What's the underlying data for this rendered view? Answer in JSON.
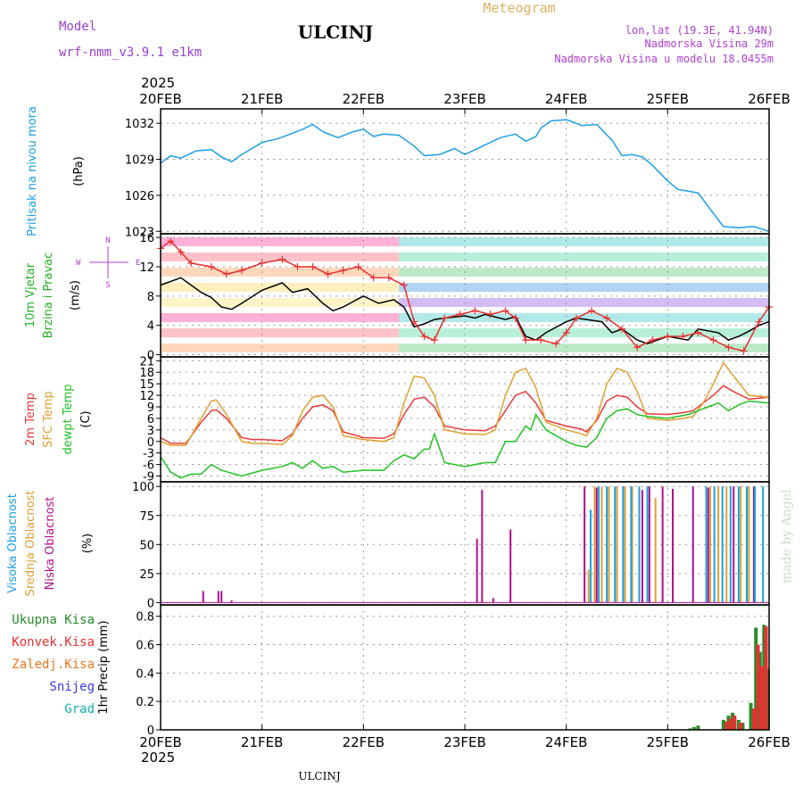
{
  "header": {
    "title": "ULCINJ",
    "subtitle": "Meteogram",
    "model_label": "Model",
    "model_name": "wrf-nmm_v3.9.1  e1km",
    "lonlat": "lon,lat (19.3E, 41.94N)",
    "elevation": "Nadmorska Visina 29m",
    "model_elevation": "Nadmorska Visina u modelu 18.0455m",
    "footer": "ULCINJ",
    "watermark": "made by Angel",
    "year_top": "2025",
    "year_bottom": "2025"
  },
  "colors": {
    "pressure": "#1a9fe6",
    "wind_speed": "#000000",
    "wind_gust": "#e63030",
    "temp_2m": "#e83a3a",
    "temp_sfc": "#e0a030",
    "dewpoint": "#22c022",
    "cloud_high": "#1a9fe6",
    "cloud_mid": "#e0a030",
    "cloud_low": "#b0108a",
    "precip_total": "#2a8a2a",
    "precip_conv": "#e63030",
    "precip_frozen": "#e87820",
    "snow": "#3a3ae0",
    "hail": "#10b0b0"
  },
  "chart_data": {
    "type": "line",
    "x_ticks": [
      "20FEB",
      "21FEB",
      "22FEB",
      "23FEB",
      "24FEB",
      "25FEB",
      "26FEB"
    ],
    "xlim": [
      0,
      6
    ],
    "panels": [
      {
        "id": "pressure",
        "ylabel_lines": [
          "Pritisak na nivou mora",
          "(hPa)"
        ],
        "yticks": [
          1023,
          1026,
          1029,
          1032
        ],
        "ylim": [
          1022.8,
          1033.2
        ],
        "series": [
          {
            "key": "pressure",
            "x": [
              0,
              0.1,
              0.2,
              0.35,
              0.5,
              0.6,
              0.7,
              0.8,
              1.0,
              1.15,
              1.25,
              1.4,
              1.5,
              1.6,
              1.75,
              1.9,
              2.0,
              2.1,
              2.2,
              2.35,
              2.5,
              2.6,
              2.75,
              2.9,
              3.0,
              3.1,
              3.2,
              3.35,
              3.5,
              3.6,
              3.7,
              3.75,
              3.85,
              4.0,
              4.1,
              4.15,
              4.3,
              4.45,
              4.55,
              4.65,
              4.75,
              4.85,
              5.0,
              5.1,
              5.3,
              5.45,
              5.55,
              5.7,
              5.85,
              6.0
            ],
            "values": [
              1028.7,
              1029.3,
              1029.1,
              1029.7,
              1029.8,
              1029.2,
              1028.8,
              1029.4,
              1030.4,
              1030.7,
              1031.0,
              1031.5,
              1031.9,
              1031.3,
              1030.8,
              1031.3,
              1031.5,
              1030.9,
              1031.1,
              1031.0,
              1030.1,
              1029.3,
              1029.4,
              1029.9,
              1029.4,
              1029.8,
              1030.2,
              1030.8,
              1031.1,
              1030.5,
              1030.9,
              1031.6,
              1032.2,
              1032.3,
              1032.0,
              1031.8,
              1031.9,
              1030.6,
              1029.3,
              1029.4,
              1029.2,
              1028.5,
              1027.2,
              1026.5,
              1026.2,
              1024.5,
              1023.4,
              1023.3,
              1023.4,
              1023.0
            ]
          }
        ]
      },
      {
        "id": "wind",
        "ylabel_lines": [
          "10m Vjetar",
          "Brzina i Pravac",
          "(m/s)"
        ],
        "yticks": [
          0,
          4,
          8,
          12,
          16
        ],
        "ylim": [
          -0.3,
          16.5
        ],
        "series": [
          {
            "key": "wind_speed",
            "x": [
              0,
              0.2,
              0.4,
              0.5,
              0.6,
              0.7,
              0.8,
              1.0,
              1.2,
              1.3,
              1.45,
              1.6,
              1.7,
              1.8,
              2.0,
              2.15,
              2.3,
              2.4,
              2.5,
              2.6,
              2.7,
              2.8,
              3.0,
              3.1,
              3.2,
              3.4,
              3.5,
              3.6,
              3.7,
              3.8,
              4.0,
              4.1,
              4.2,
              4.35,
              4.45,
              4.55,
              4.7,
              4.8,
              5.0,
              5.2,
              5.3,
              5.5,
              5.6,
              5.7,
              5.8,
              5.9,
              6.0
            ],
            "values": [
              9.5,
              10.5,
              8.5,
              7.8,
              6.5,
              6.2,
              7.0,
              8.8,
              9.8,
              8.5,
              9.0,
              7.0,
              6.0,
              6.5,
              8.0,
              7.0,
              7.5,
              6.5,
              3.8,
              4.2,
              4.8,
              5.0,
              5.3,
              5.0,
              5.5,
              4.8,
              5.2,
              2.5,
              2.0,
              3.0,
              4.5,
              5.0,
              4.8,
              4.5,
              3.0,
              3.5,
              2.0,
              1.5,
              2.5,
              2.0,
              3.5,
              3.0,
              2.0,
              2.5,
              3.2,
              4.0,
              4.5
            ]
          },
          {
            "key": "wind_gust",
            "x": [
              0,
              0.1,
              0.2,
              0.3,
              0.5,
              0.65,
              0.8,
              1.0,
              1.2,
              1.35,
              1.5,
              1.65,
              1.8,
              1.95,
              2.1,
              2.25,
              2.4,
              2.5,
              2.6,
              2.7,
              2.8,
              2.95,
              3.1,
              3.25,
              3.4,
              3.5,
              3.6,
              3.75,
              3.9,
              4.0,
              4.1,
              4.25,
              4.4,
              4.55,
              4.7,
              4.85,
              5.0,
              5.15,
              5.3,
              5.45,
              5.6,
              5.75,
              5.9,
              6.0
            ],
            "values": [
              14.5,
              15.5,
              14.0,
              12.5,
              12.0,
              11.0,
              11.5,
              12.5,
              13.0,
              12.0,
              12.0,
              11.0,
              11.5,
              12.0,
              10.5,
              10.5,
              9.5,
              4.5,
              2.5,
              2.0,
              5.0,
              5.5,
              6.0,
              5.5,
              6.0,
              5.0,
              2.0,
              2.0,
              1.5,
              3.0,
              5.0,
              6.0,
              5.0,
              3.5,
              1.0,
              2.0,
              2.5,
              2.5,
              3.0,
              2.0,
              1.0,
              0.5,
              4.5,
              6.5
            ]
          }
        ]
      },
      {
        "id": "temperature",
        "ylabel_lines": [
          "2m Temp",
          "SFC Temp",
          "dewpt Temp",
          "(C)"
        ],
        "yticks": [
          -9,
          -6,
          -3,
          0,
          3,
          6,
          9,
          12,
          15,
          18,
          21
        ],
        "ylim": [
          -10.5,
          22
        ],
        "series": [
          {
            "key": "temp_2m",
            "x": [
              0,
              0.1,
              0.25,
              0.4,
              0.5,
              0.55,
              0.65,
              0.8,
              0.9,
              1.0,
              1.2,
              1.3,
              1.4,
              1.5,
              1.6,
              1.7,
              1.8,
              2.0,
              2.2,
              2.3,
              2.4,
              2.5,
              2.6,
              2.7,
              2.8,
              3.0,
              3.2,
              3.3,
              3.4,
              3.5,
              3.6,
              3.7,
              3.8,
              4.0,
              4.15,
              4.2,
              4.3,
              4.4,
              4.5,
              4.6,
              4.7,
              4.8,
              5.0,
              5.15,
              5.25,
              5.35,
              5.45,
              5.55,
              5.65,
              5.8,
              6.0
            ],
            "values": [
              1,
              -0.5,
              -0.5,
              5,
              8,
              8.2,
              6,
              1,
              0.5,
              0.5,
              0.2,
              2,
              6,
              9,
              9.5,
              8,
              2.5,
              1,
              0.8,
              2,
              7,
              11,
              11.5,
              9,
              4,
              3,
              2.8,
              4,
              8,
              12,
              13,
              10,
              5.5,
              4,
              3.2,
              2.5,
              5.5,
              10.5,
              12,
              11.5,
              9,
              7.2,
              7,
              7.5,
              8,
              10,
              12,
              14.5,
              13,
              11,
              11.5
            ]
          },
          {
            "key": "temp_sfc",
            "x": [
              0,
              0.1,
              0.25,
              0.4,
              0.5,
              0.55,
              0.65,
              0.8,
              0.9,
              1.0,
              1.2,
              1.3,
              1.4,
              1.5,
              1.6,
              1.7,
              1.8,
              2.0,
              2.2,
              2.3,
              2.4,
              2.5,
              2.6,
              2.7,
              2.8,
              3.0,
              3.2,
              3.3,
              3.4,
              3.5,
              3.6,
              3.7,
              3.8,
              4.0,
              4.15,
              4.2,
              4.3,
              4.4,
              4.5,
              4.6,
              4.7,
              4.8,
              5.0,
              5.15,
              5.25,
              5.35,
              5.45,
              5.55,
              5.65,
              5.8,
              6.0
            ],
            "values": [
              0,
              -1,
              -1,
              6,
              10.5,
              10.8,
              7,
              0,
              -0.5,
              -0.5,
              -0.8,
              1.5,
              8,
              11.5,
              12,
              9,
              1.5,
              0.5,
              0,
              1,
              10,
              17,
              16.5,
              12,
              3,
              2,
              1.8,
              3,
              12,
              18,
              19,
              14,
              5,
              3,
              2,
              1.5,
              6,
              15,
              19,
              18,
              13,
              6,
              5.5,
              6,
              6.5,
              10,
              15,
              20.5,
              17,
              12,
              11.5
            ]
          },
          {
            "key": "dewpoint",
            "x": [
              0,
              0.1,
              0.2,
              0.3,
              0.4,
              0.5,
              0.6,
              0.8,
              1.0,
              1.2,
              1.3,
              1.4,
              1.5,
              1.6,
              1.7,
              1.8,
              2.0,
              2.2,
              2.3,
              2.4,
              2.5,
              2.6,
              2.65,
              2.7,
              2.8,
              3.0,
              3.1,
              3.2,
              3.3,
              3.4,
              3.5,
              3.6,
              3.65,
              3.7,
              3.8,
              4.0,
              4.1,
              4.2,
              4.3,
              4.4,
              4.5,
              4.6,
              4.7,
              4.8,
              5.0,
              5.2,
              5.3,
              5.4,
              5.5,
              5.6,
              5.7,
              5.8,
              6.0
            ],
            "values": [
              -4,
              -8,
              -9.5,
              -8.5,
              -8.5,
              -6,
              -7.5,
              -9,
              -7.5,
              -6.5,
              -5.5,
              -7,
              -5,
              -7,
              -6.5,
              -8,
              -7.5,
              -7.5,
              -5,
              -3.5,
              -4.5,
              -2,
              -2,
              2,
              -5.5,
              -6.5,
              -6,
              -5.5,
              -5.5,
              0,
              0,
              4,
              3,
              7,
              3,
              0,
              -1,
              -1.5,
              1,
              6,
              8,
              8.5,
              7,
              6.5,
              6,
              7,
              8,
              9,
              10,
              8,
              9.5,
              10.5,
              10
            ]
          }
        ]
      },
      {
        "id": "clouds",
        "ylabel_lines": [
          "Visoka Oblacnost",
          "Srednja Oblacnost",
          "Niska Oblacnost",
          "(%)"
        ],
        "yticks": [
          0,
          25,
          50,
          75,
          100
        ],
        "ylim": [
          -2,
          104
        ],
        "series": [
          {
            "key": "cloud_low",
            "x": [
              0.42,
              0.57,
              0.6,
              0.7,
              3.12,
              3.17,
              3.28,
              3.45,
              4.18,
              4.3,
              4.5,
              4.75,
              4.82,
              4.95,
              5.05,
              5.25,
              5.4,
              5.65,
              5.85
            ],
            "values": [
              10,
              10,
              10,
              2,
              55,
              97,
              4,
              63,
              100,
              99,
              98,
              97,
              100,
              100,
              98,
              100,
              99,
              100,
              100
            ]
          },
          {
            "key": "cloud_mid",
            "x": [
              4.22,
              4.28,
              4.35,
              4.42,
              4.5,
              4.58,
              4.65,
              4.72,
              4.8,
              4.88,
              5.42,
              5.5,
              5.58,
              5.72,
              5.8
            ],
            "values": [
              28,
              100,
              100,
              100,
              100,
              100,
              100,
              100,
              100,
              90,
              100,
              100,
              100,
              100,
              100
            ]
          },
          {
            "key": "cloud_high",
            "x": [
              4.24,
              4.32,
              4.4,
              4.48,
              4.56,
              4.64,
              4.72,
              4.8,
              5.38,
              5.46,
              5.54,
              5.62,
              5.7,
              5.78,
              5.86,
              5.94
            ],
            "values": [
              80,
              100,
              100,
              100,
              100,
              100,
              100,
              100,
              100,
              100,
              100,
              100,
              100,
              100,
              100,
              100
            ]
          }
        ]
      },
      {
        "id": "precip",
        "ylabel_lines": [
          "1hr Precip (mm)"
        ],
        "yticks": [
          0,
          0.2,
          0.4,
          0.6,
          0.8
        ],
        "ylim": [
          0,
          0.88
        ],
        "legend": [
          "Ukupna Kisa",
          "Konvek.Kisa",
          "Zaledj.Kisa",
          "Snijeg",
          "Grad"
        ],
        "series": [
          {
            "key": "precip_total",
            "x": [
              5.22,
              5.26,
              5.3,
              5.55,
              5.6,
              5.64,
              5.7,
              5.74,
              5.82,
              5.87,
              5.91,
              5.95,
              5.99
            ],
            "values": [
              0.01,
              0.02,
              0.03,
              0.07,
              0.1,
              0.12,
              0.07,
              0.05,
              0.19,
              0.72,
              0.55,
              0.74,
              0.43
            ]
          },
          {
            "key": "precip_conv",
            "x": [
              5.58,
              5.62,
              5.66,
              5.72,
              5.85,
              5.89,
              5.93,
              5.97
            ],
            "values": [
              0.06,
              0.08,
              0.1,
              0.05,
              0.15,
              0.6,
              0.45,
              0.73
            ]
          }
        ]
      }
    ]
  }
}
